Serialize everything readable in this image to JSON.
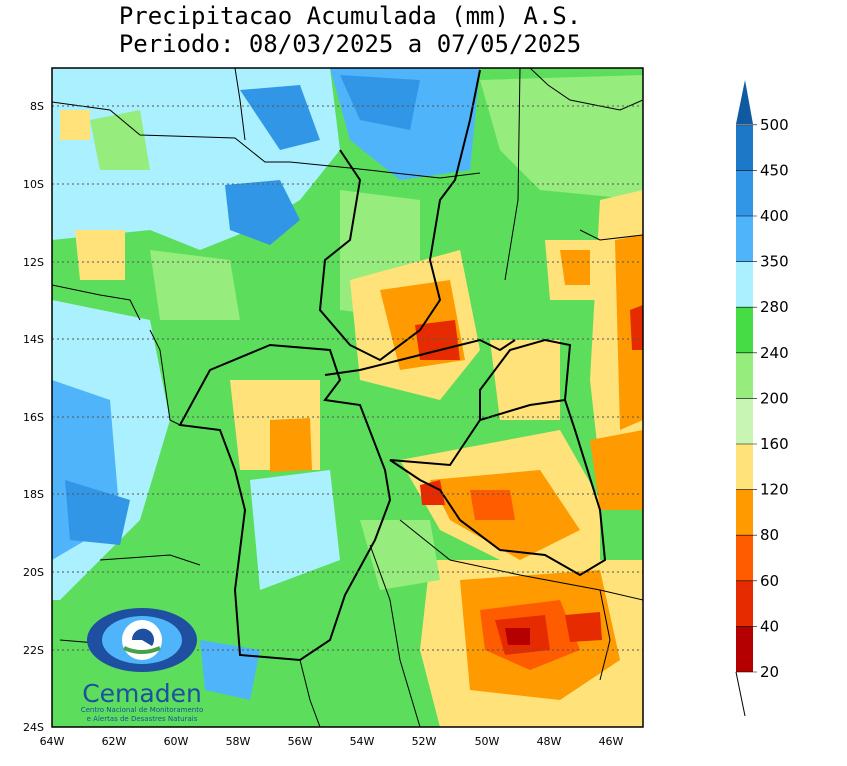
{
  "title": {
    "line1": "Precipitacao Acumulada (mm) A.S.",
    "line2": "Periodo: 08/03/2025 a 07/05/2025"
  },
  "map": {
    "lat_labels": [
      "8S",
      "10S",
      "12S",
      "14S",
      "16S",
      "18S",
      "20S",
      "22S",
      "24S"
    ],
    "lon_labels": [
      "64W",
      "62W",
      "60W",
      "58W",
      "56W",
      "54W",
      "52W",
      "50W",
      "48W",
      "46W"
    ],
    "lon_range": [
      -64,
      -45
    ],
    "lat_range": [
      -24,
      -7.3
    ],
    "background_color": "#5cde5c"
  },
  "legend": {
    "bins": [
      {
        "label": "20",
        "color": "#b50000"
      },
      {
        "label": "40",
        "color": "#e62b00"
      },
      {
        "label": "60",
        "color": "#ff5c00"
      },
      {
        "label": "80",
        "color": "#ff9a00"
      },
      {
        "label": "120",
        "color": "#ffe27a"
      },
      {
        "label": "160",
        "color": "#c8f5b4"
      },
      {
        "label": "200",
        "color": "#96ec7c"
      },
      {
        "label": "240",
        "color": "#46dc46"
      },
      {
        "label": "280",
        "color": "#aaf0ff"
      },
      {
        "label": "350",
        "color": "#50b4fa"
      },
      {
        "label": "400",
        "color": "#3296e6"
      },
      {
        "label": "450",
        "color": "#1e78c8"
      },
      {
        "label": "500",
        "color": "#0f5aa0"
      }
    ]
  },
  "logo": {
    "name": "Cemaden",
    "subtitle1": "Centro Nacional de Monitoramento",
    "subtitle2": "e Alertas de Desastres Naturais"
  }
}
